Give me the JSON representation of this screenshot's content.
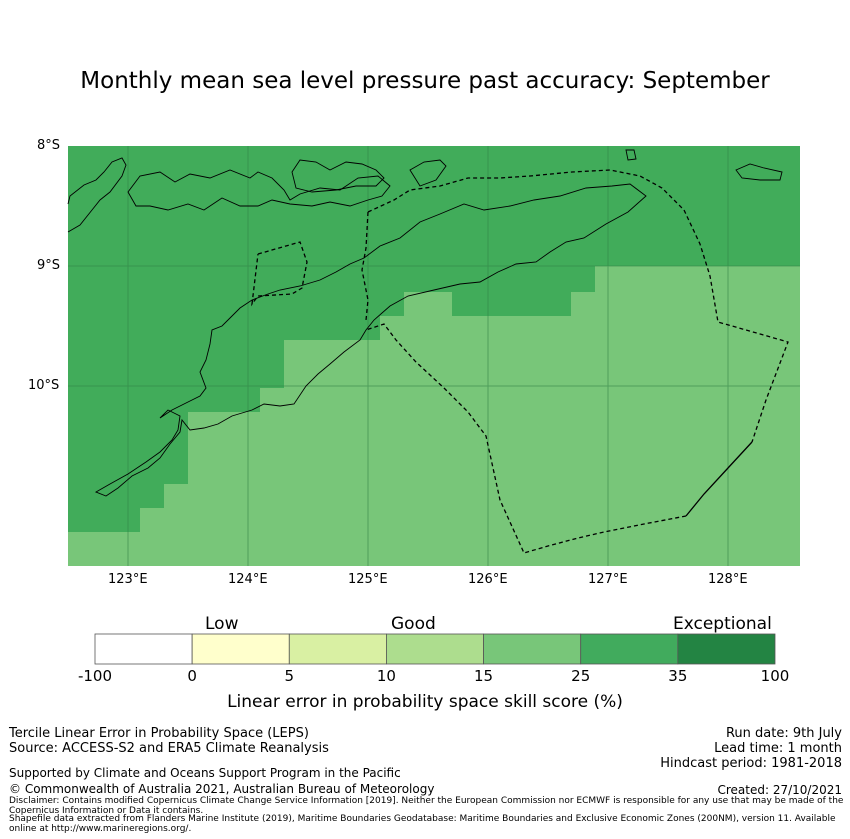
{
  "title": "Monthly mean sea level pressure past accuracy: September",
  "map": {
    "lat_labels": [
      "8°S",
      "9°S",
      "10°S"
    ],
    "lon_labels": [
      "123°E",
      "124°E",
      "125°E",
      "126°E",
      "127°E",
      "128°E"
    ],
    "extent": {
      "lon": [
        122.5,
        128.6
      ],
      "lat": [
        -11.5,
        -8.0
      ]
    },
    "colors": {
      "mid_green": "#41ac5a",
      "light_green": "#78c679",
      "gridline": "#2f7f45"
    }
  },
  "colorbar": {
    "categories": [
      "Low",
      "Good",
      "Exceptional"
    ],
    "ticks": [
      "-100",
      "0",
      "5",
      "10",
      "15",
      "25",
      "35",
      "100"
    ],
    "colors": [
      "#ffffff",
      "#ffffcc",
      "#d9f0a3",
      "#addd8e",
      "#78c679",
      "#41ab5d",
      "#238443"
    ],
    "label": "Linear error in probability space skill score (%)"
  },
  "footer": {
    "left1": "Tercile Linear Error in Probability Space (LEPS)",
    "left2": "Source: ACCESS-S2 and ERA5 Climate Reanalysis",
    "right1": "Run date: 9th July",
    "right2": "Lead time: 1 month",
    "right3": "Hindcast period: 1981-2018",
    "supported": "Supported by Climate and Oceans Support Program in the Pacific",
    "copyright": "© Commonwealth of Australia 2021, Australian Bureau of Meteorology",
    "created": "Created: 27/10/2021",
    "disclaimer": "Disclaimer: Contains modified Copernicus Climate Change Service Information [2019]. Neither the European Commission nor ECMWF is responsible for any use that may be made of the Copernicus Information or Data it contains.",
    "shapefile": "Shapefile data extracted from Flanders Marine Institute (2019), Maritime Boundaries Geodatabase: Maritime Boundaries and Exclusive Economic Zones (200NM), version 11. Available online at http://www.marineregions.org/."
  }
}
